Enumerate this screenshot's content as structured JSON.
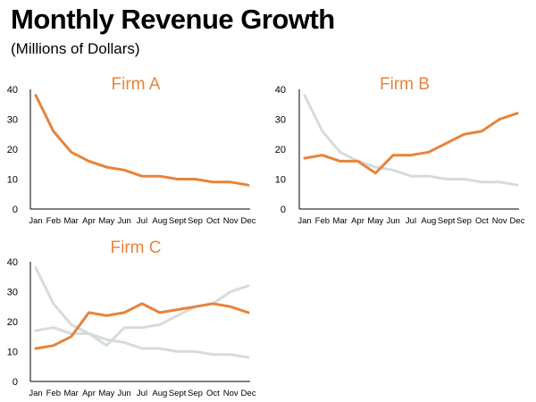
{
  "title": "Monthly Revenue Growth",
  "subtitle": "(Millions of Dollars)",
  "colors": {
    "highlight": "#e8833a",
    "context": "#d6dcdc",
    "axis": "#000000"
  },
  "chart_data": [
    {
      "type": "line",
      "title": "Firm A",
      "categories": [
        "Jan",
        "Feb",
        "Mar",
        "Apr",
        "May",
        "Jun",
        "Jul",
        "Aug",
        "Sept",
        "Sep",
        "Oct",
        "Nov",
        "Dec"
      ],
      "ylim": [
        0,
        40
      ],
      "yticks": [
        0,
        10,
        20,
        30,
        40
      ],
      "highlight": "Firm A",
      "series": [
        {
          "name": "Firm A",
          "values": [
            38,
            26,
            19,
            16,
            14,
            13,
            11,
            11,
            10,
            10,
            9,
            9,
            8
          ]
        }
      ]
    },
    {
      "type": "line",
      "title": "Firm B",
      "categories": [
        "Jan",
        "Feb",
        "Mar",
        "Apr",
        "May",
        "Jun",
        "Jul",
        "Aug",
        "Sept",
        "Sep",
        "Oct",
        "Nov",
        "Dec"
      ],
      "ylim": [
        0,
        40
      ],
      "yticks": [
        0,
        10,
        20,
        30,
        40
      ],
      "highlight": "Firm B",
      "series": [
        {
          "name": "Firm A",
          "values": [
            38,
            26,
            19,
            16,
            14,
            13,
            11,
            11,
            10,
            10,
            9,
            9,
            8
          ]
        },
        {
          "name": "Firm B",
          "values": [
            17,
            18,
            16,
            16,
            12,
            18,
            18,
            19,
            22,
            25,
            26,
            30,
            32
          ]
        }
      ]
    },
    {
      "type": "line",
      "title": "Firm C",
      "categories": [
        "Jan",
        "Feb",
        "Mar",
        "Apr",
        "May",
        "Jun",
        "Jul",
        "Aug",
        "Sept",
        "Sep",
        "Oct",
        "Nov",
        "Dec"
      ],
      "ylim": [
        0,
        40
      ],
      "yticks": [
        0,
        10,
        20,
        30,
        40
      ],
      "highlight": "Firm C",
      "series": [
        {
          "name": "Firm A",
          "values": [
            38,
            26,
            19,
            16,
            14,
            13,
            11,
            11,
            10,
            10,
            9,
            9,
            8
          ]
        },
        {
          "name": "Firm B",
          "values": [
            17,
            18,
            16,
            16,
            12,
            18,
            18,
            19,
            22,
            25,
            26,
            30,
            32
          ]
        },
        {
          "name": "Firm C",
          "values": [
            11,
            12,
            15,
            23,
            22,
            23,
            26,
            23,
            24,
            25,
            26,
            25,
            23
          ]
        }
      ]
    }
  ]
}
